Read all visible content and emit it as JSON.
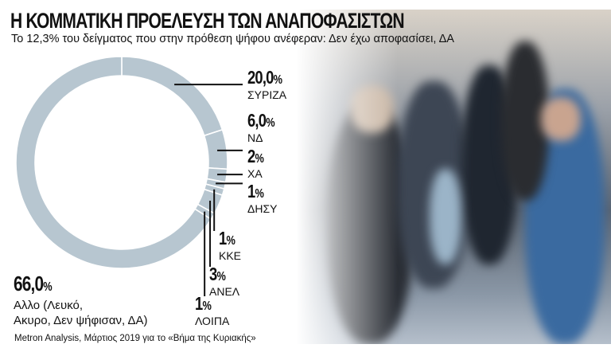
{
  "title": "Η ΚΟΜΜΑΤΙΚΗ ΠΡΟΕΛΕΥΣΗ ΤΩΝ ΑΝΑΠΟΦΑΣΙΣΤΩΝ",
  "subtitle": "Το 12,3% του δείγματος που στην πρόθεση ψήφου ανέφεραν: Δεν έχω αποφασίσει, ΔΑ",
  "source": "Metron Analysis, Μάρτιος 2019 για το «Βήμα της Κυριακής»",
  "chart_data": {
    "type": "pie",
    "variant": "donut",
    "ring_color": "#b7c6d0",
    "categories": [
      "ΣΥΡΙΖΑ",
      "ΝΔ",
      "ΧΑ",
      "ΔΗΣΥ",
      "ΚΚΕ",
      "ΑΝΕΛ",
      "ΛΟΙΠΑ",
      "Αλλο (Λευκό, Ακυρο, Δεν ψήφισαν, ΔΑ)"
    ],
    "values": [
      20.0,
      6.0,
      2,
      1,
      1,
      3,
      1,
      66.0
    ],
    "labels": [
      {
        "value": "20,0",
        "pct": "%",
        "name": "ΣΥΡΙΖΑ"
      },
      {
        "value": "6,0",
        "pct": "%",
        "name": "ΝΔ"
      },
      {
        "value": "2",
        "pct": "%",
        "name": "ΧΑ"
      },
      {
        "value": "1",
        "pct": "%",
        "name": "ΔΗΣΥ"
      },
      {
        "value": "1",
        "pct": "%",
        "name": "ΚΚΕ"
      },
      {
        "value": "3",
        "pct": "%",
        "name": "ΑΝΕΛ"
      },
      {
        "value": "1",
        "pct": "%",
        "name": "ΛΟΙΠΑ"
      },
      {
        "value": "66,0",
        "pct": "%",
        "name1": "Αλλο (Λευκό,",
        "name2": "Ακυρο, Δεν ψήφισαν, ΔΑ)"
      }
    ]
  }
}
